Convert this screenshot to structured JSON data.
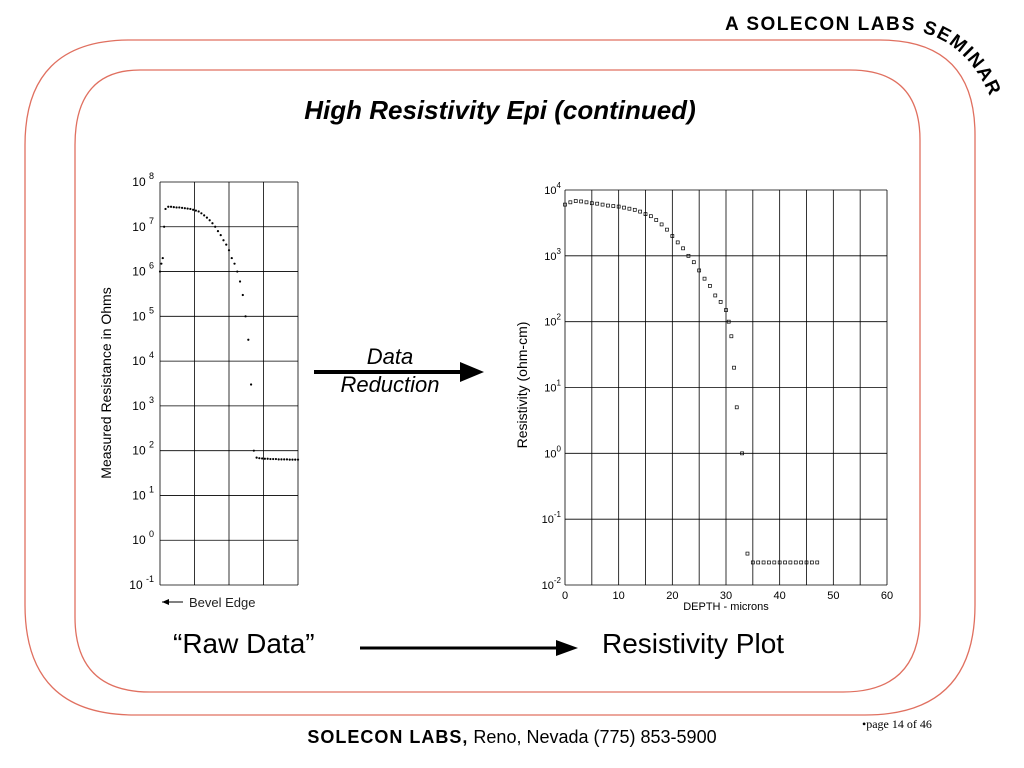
{
  "header": {
    "banner": "A SOLECON LABS SEMINAR"
  },
  "slide": {
    "title": "High Resistivity Epi (continued)",
    "arrow_label_line1": "Data",
    "arrow_label_line2": "Reduction",
    "raw_label": "“Raw Data”",
    "result_label": "Resistivity Plot"
  },
  "footer": {
    "brand": "SOLECON LABS,",
    "location": " Reno, Nevada (775) 853-5900",
    "page": "•page 14 of 46"
  },
  "chart_data": [
    {
      "type": "scatter",
      "title": "",
      "ylabel": "Measured Resistance in Ohms",
      "xlabel": "",
      "yscale": "log",
      "ylim": [
        0.1,
        100000000
      ],
      "ytick_bases": [
        "10",
        "10",
        "10",
        "10",
        "10",
        "10",
        "10",
        "10",
        "10",
        "10"
      ],
      "ytick_exps": [
        "-1",
        "8",
        "7",
        "6",
        "5",
        "4",
        "3",
        "2",
        "1",
        "0"
      ],
      "annotation": "Bevel Edge",
      "grid": true,
      "series": [
        {
          "x": [
            0.0,
            0.5,
            1.0,
            1.5,
            2,
            3,
            4,
            5,
            6,
            7,
            8,
            9,
            10,
            11,
            12,
            13,
            14,
            15,
            16,
            17,
            18,
            19,
            20,
            21,
            22,
            23,
            24,
            25,
            26,
            27,
            28,
            29,
            30,
            31,
            32,
            33,
            34,
            35,
            36,
            37,
            38,
            39,
            40,
            41,
            42,
            43,
            44,
            45,
            46,
            47,
            48,
            49,
            50
          ],
          "y": [
            1000000,
            1500000,
            2000000,
            10000000,
            25000000,
            28000000,
            28000000,
            27500000,
            27000000,
            27000000,
            26500000,
            26000000,
            25500000,
            25000000,
            24000000,
            23000000,
            22000000,
            20000000,
            18000000,
            16000000,
            14000000,
            12000000,
            10000000,
            8000000,
            6500000,
            5000000,
            4000000,
            3000000,
            2000000,
            1500000,
            1000000,
            600000,
            300000,
            100000,
            30000,
            3000,
            100,
            70,
            68,
            67,
            66,
            66,
            65,
            65,
            65,
            64,
            64,
            64,
            64,
            63,
            63,
            63,
            63
          ]
        }
      ]
    },
    {
      "type": "scatter",
      "title": "",
      "ylabel": "Resistivity (ohm-cm)",
      "xlabel": "DEPTH - microns",
      "yscale": "log",
      "xlim": [
        0,
        60
      ],
      "ylim": [
        0.01,
        10000
      ],
      "xticks": [
        "0",
        "10",
        "20",
        "30",
        "40",
        "50",
        "60"
      ],
      "ytick_bases": [
        "10",
        "10",
        "10",
        "10",
        "10",
        "10",
        "10"
      ],
      "ytick_exps": [
        "4",
        "3",
        "2",
        "1",
        "0",
        "-1",
        "-2"
      ],
      "grid": true,
      "series": [
        {
          "x": [
            0,
            1,
            2,
            3,
            4,
            5,
            6,
            7,
            8,
            9,
            10,
            11,
            12,
            13,
            14,
            15,
            16,
            17,
            18,
            19,
            20,
            21,
            22,
            23,
            24,
            25,
            26,
            27,
            28,
            29,
            30,
            30.5,
            31,
            31.5,
            32,
            33,
            34,
            35,
            36,
            37,
            38,
            39,
            40,
            41,
            42,
            43,
            44,
            45,
            46,
            47
          ],
          "y": [
            6000,
            6500,
            6800,
            6700,
            6500,
            6300,
            6200,
            6000,
            5800,
            5700,
            5600,
            5400,
            5200,
            5000,
            4700,
            4300,
            4000,
            3500,
            3000,
            2500,
            2000,
            1600,
            1300,
            1000,
            800,
            600,
            450,
            350,
            250,
            200,
            150,
            100,
            60,
            20,
            5,
            1,
            0.03,
            0.022,
            0.022,
            0.022,
            0.022,
            0.022,
            0.022,
            0.022,
            0.022,
            0.022,
            0.022,
            0.022,
            0.022,
            0.022
          ]
        }
      ]
    }
  ]
}
